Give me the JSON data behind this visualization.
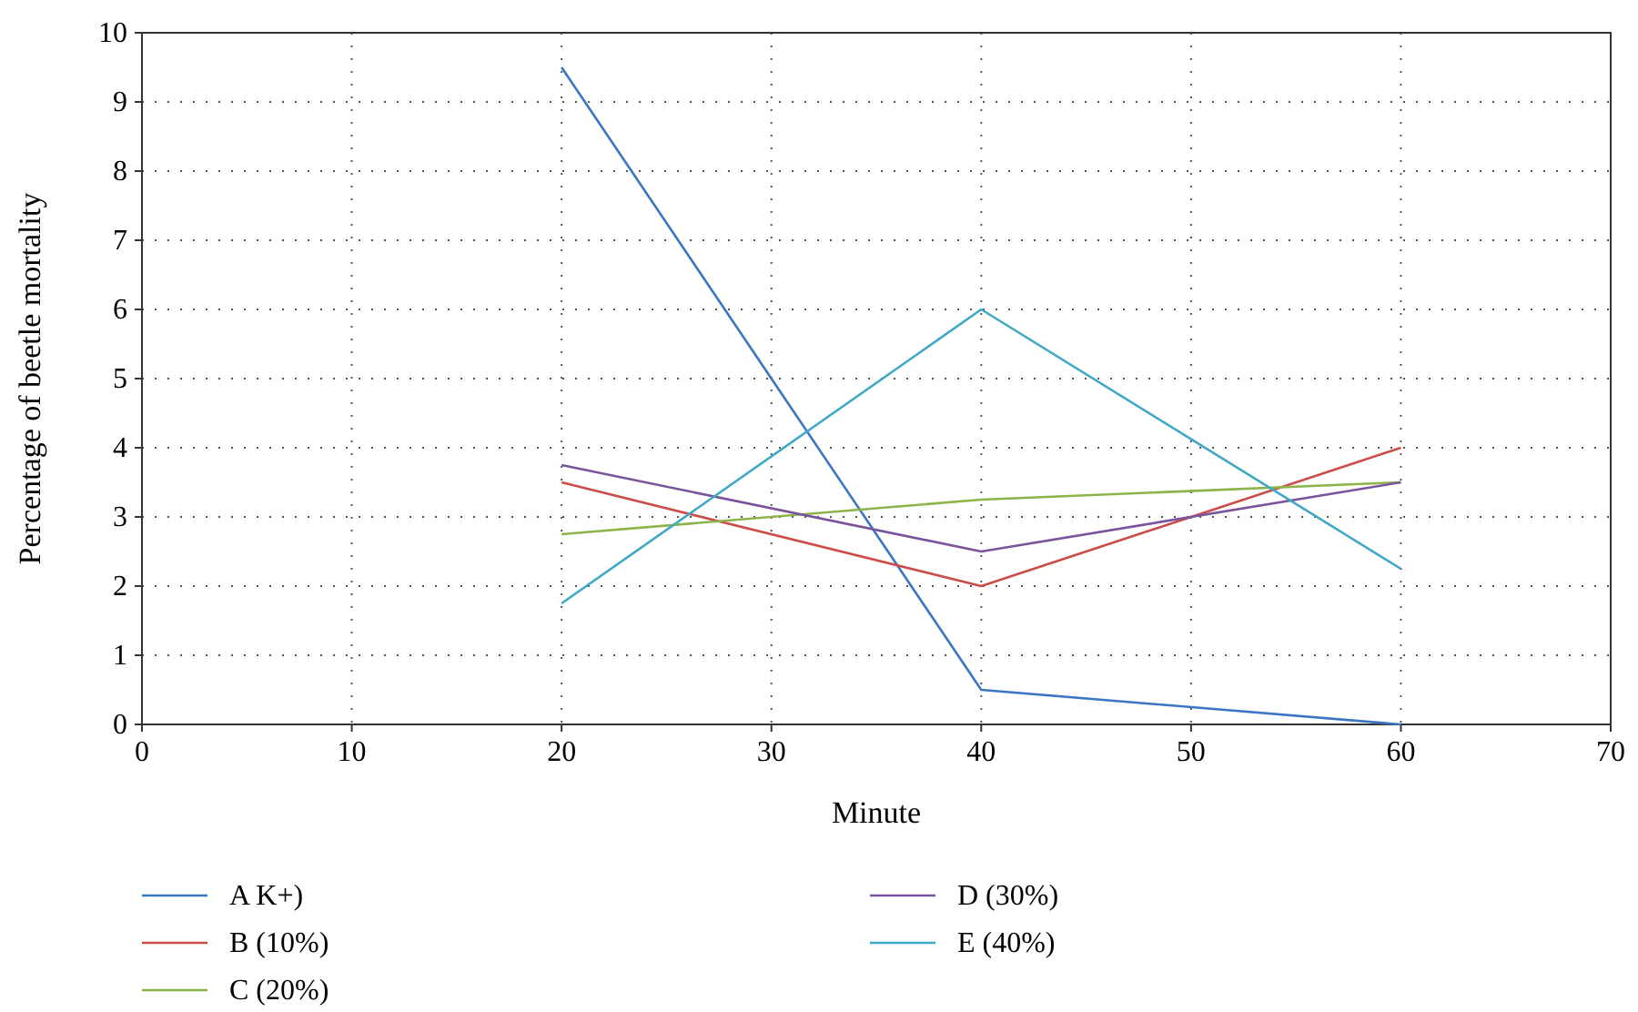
{
  "chart_data": {
    "type": "line",
    "xlabel": "Minute",
    "ylabel": "Percentage of beetle mortality",
    "x": [
      20,
      40,
      60
    ],
    "xlim": [
      0,
      70
    ],
    "xticks": [
      0,
      10,
      20,
      30,
      40,
      50,
      60,
      70
    ],
    "ylim": [
      0,
      10
    ],
    "yticks": [
      0,
      1,
      2,
      3,
      4,
      5,
      6,
      7,
      8,
      9,
      10
    ],
    "grid": true,
    "legend": "bottom",
    "marker": "none",
    "line_style": "solid",
    "series": [
      {
        "name": "A K+)",
        "color": "#3b76c4",
        "values": [
          9.5,
          0.5,
          0
        ]
      },
      {
        "name": "B (10%)",
        "color": "#cc4c48",
        "values": [
          3.5,
          2,
          4
        ]
      },
      {
        "name": "C (20%)",
        "color": "#8db44a",
        "values": [
          2.75,
          3.25,
          3.5
        ]
      },
      {
        "name": "D (30%)",
        "color": "#7a549c",
        "values": [
          3.75,
          2.5,
          3.5
        ]
      },
      {
        "name": "E (40%)",
        "color": "#3ea8c6",
        "values": [
          1.75,
          6,
          2.25
        ]
      }
    ]
  }
}
